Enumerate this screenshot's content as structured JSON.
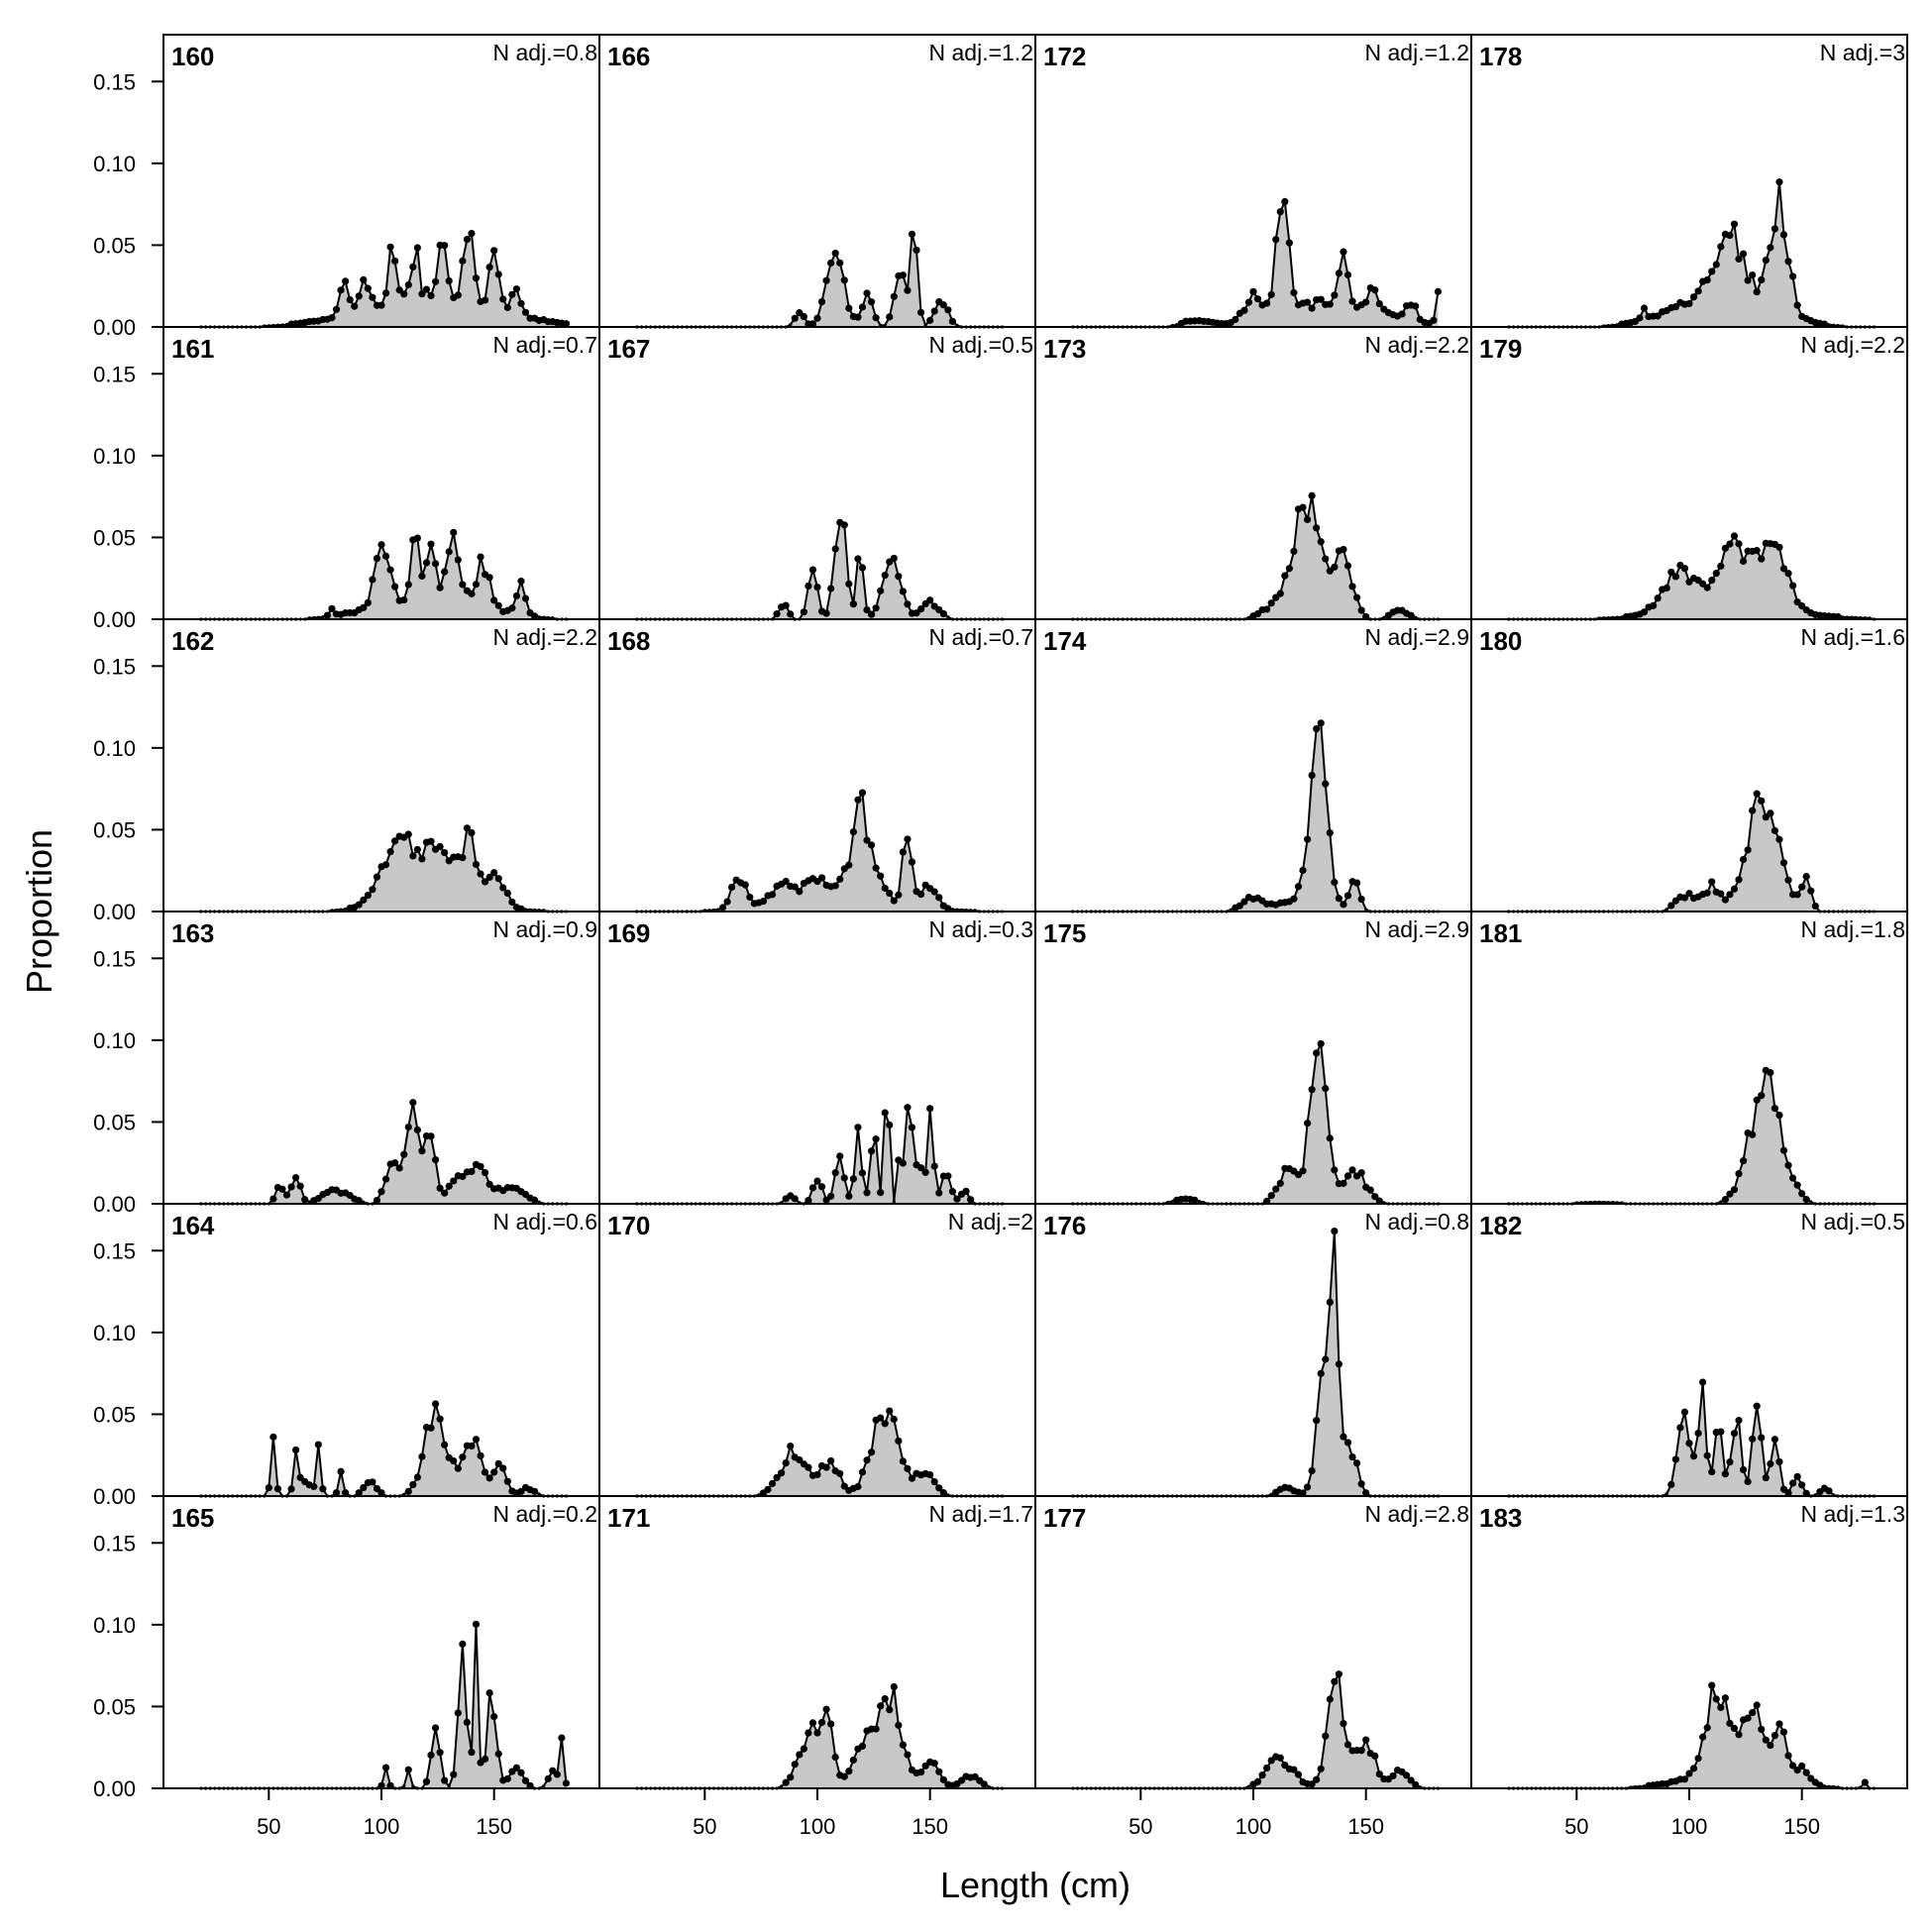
{
  "chart_data": {
    "type": "area",
    "xlabel": "Length (cm)",
    "ylabel": "Proportion",
    "xlim": [
      5,
      195
    ],
    "ylim": [
      0,
      0.175
    ],
    "xticks": [
      50,
      100,
      150
    ],
    "xtick_labels": [
      "50",
      "100",
      "150"
    ],
    "yticks": [
      0,
      0.05,
      0.1,
      0.15
    ],
    "ytick_labels": [
      "0.00",
      "0.05",
      "0.10",
      "0.15"
    ],
    "grid": false,
    "legend": "none",
    "layout": {
      "rows": 6,
      "cols": 4
    },
    "style": {
      "fill": "#c8c8c8",
      "line": "#000000"
    },
    "panels": [
      {
        "id": "160",
        "nadj": "N adj.=0.8",
        "row": 0,
        "col": 0,
        "peaks": [
          [
            83,
            0.02,
            2
          ],
          [
            92,
            0.02,
            2
          ],
          [
            105,
            0.036,
            1.5
          ],
          [
            115,
            0.03,
            1.5
          ],
          [
            127,
            0.035,
            1.5
          ],
          [
            139,
            0.052,
            2
          ],
          [
            150,
            0.032,
            2
          ],
          [
            160,
            0.015,
            2
          ]
        ],
        "broad": [
          [
            122,
            28,
            0.02
          ]
        ]
      },
      {
        "id": "166",
        "nadj": "N adj.=1.2",
        "row": 0,
        "col": 1,
        "peaks": [
          [
            92,
            0.01,
            2
          ],
          [
            108,
            0.041,
            4
          ],
          [
            122,
            0.018,
            2.5
          ],
          [
            137,
            0.04,
            2.5
          ],
          [
            143,
            0.057,
            1.5
          ],
          [
            155,
            0.015,
            3
          ]
        ],
        "broad": []
      },
      {
        "id": "172",
        "nadj": "N adj.=1.2",
        "row": 0,
        "col": 2,
        "peaks": [
          [
            113,
            0.078,
            2.5
          ],
          [
            100,
            0.015,
            4
          ],
          [
            75,
            0.004,
            6
          ],
          [
            140,
            0.025,
            2
          ],
          [
            153,
            0.013,
            2
          ],
          [
            170,
            0.012,
            2
          ],
          [
            182,
            0.02,
            1
          ]
        ],
        "broad": [
          [
            135,
            22,
            0.015
          ]
        ]
      },
      {
        "id": "178",
        "nadj": "N adj.=3",
        "row": 0,
        "col": 3,
        "peaks": [
          [
            80,
            0.008,
            1
          ],
          [
            118,
            0.035,
            6
          ],
          [
            140,
            0.066,
            4
          ]
        ],
        "broad": [
          [
            115,
            20,
            0.022
          ]
        ]
      },
      {
        "id": "161",
        "nadj": "N adj.=0.7",
        "row": 1,
        "col": 0,
        "peaks": [
          [
            78,
            0.005,
            1
          ],
          [
            100,
            0.04,
            3
          ],
          [
            115,
            0.055,
            1.5
          ],
          [
            122,
            0.03,
            2
          ],
          [
            132,
            0.038,
            2.5
          ],
          [
            145,
            0.025,
            3
          ],
          [
            162,
            0.018,
            2
          ]
        ],
        "broad": [
          [
            122,
            22,
            0.015
          ]
        ]
      },
      {
        "id": "167",
        "nadj": "N adj.=0.5",
        "row": 1,
        "col": 1,
        "peaks": [
          [
            85,
            0.01,
            2
          ],
          [
            98,
            0.03,
            2
          ],
          [
            110,
            0.068,
            2.5
          ],
          [
            119,
            0.04,
            1.5
          ],
          [
            133,
            0.035,
            4
          ],
          [
            150,
            0.01,
            4
          ]
        ],
        "broad": []
      },
      {
        "id": "173",
        "nadj": "N adj.=2.2",
        "row": 1,
        "col": 2,
        "peaks": [
          [
            124,
            0.07,
            6
          ],
          [
            140,
            0.035,
            4
          ],
          [
            110,
            0.008,
            6
          ],
          [
            165,
            0.005,
            4
          ]
        ],
        "broad": []
      },
      {
        "id": "179",
        "nadj": "N adj.=2.2",
        "row": 1,
        "col": 3,
        "peaks": [
          [
            95,
            0.026,
            7
          ],
          [
            120,
            0.038,
            8
          ],
          [
            138,
            0.035,
            6
          ]
        ],
        "broad": [
          [
            120,
            30,
            0.005
          ]
        ]
      },
      {
        "id": "162",
        "nadj": "N adj.=2.2",
        "row": 2,
        "col": 0,
        "peaks": [
          [
            108,
            0.04,
            8
          ],
          [
            126,
            0.036,
            6
          ],
          [
            139,
            0.043,
            3
          ],
          [
            150,
            0.025,
            4
          ]
        ],
        "broad": [
          [
            125,
            25,
            0.004
          ]
        ]
      },
      {
        "id": "168",
        "nadj": "N adj.=0.7",
        "row": 2,
        "col": 1,
        "peaks": [
          [
            65,
            0.02,
            3
          ],
          [
            85,
            0.012,
            6
          ],
          [
            100,
            0.015,
            5
          ],
          [
            120,
            0.045,
            6
          ],
          [
            119,
            0.025,
            1
          ],
          [
            140,
            0.045,
            2
          ],
          [
            150,
            0.015,
            3
          ]
        ],
        "broad": [
          [
            110,
            30,
            0.005
          ]
        ]
      },
      {
        "id": "174",
        "nadj": "N adj.=2.9",
        "row": 2,
        "col": 2,
        "peaks": [
          [
            129,
            0.117,
            3.5
          ],
          [
            145,
            0.02,
            2
          ],
          [
            100,
            0.008,
            5
          ]
        ],
        "broad": [
          [
            125,
            10,
            0.01
          ]
        ]
      },
      {
        "id": "180",
        "nadj": "N adj.=1.6",
        "row": 2,
        "col": 3,
        "peaks": [
          [
            133,
            0.068,
            7
          ],
          [
            98,
            0.01,
            4
          ],
          [
            110,
            0.015,
            4
          ],
          [
            152,
            0.02,
            2
          ]
        ],
        "broad": []
      },
      {
        "id": "163",
        "nadj": "N adj.=0.9",
        "row": 3,
        "col": 0,
        "peaks": [
          [
            55,
            0.01,
            2
          ],
          [
            62,
            0.015,
            2
          ],
          [
            80,
            0.008,
            6
          ],
          [
            105,
            0.03,
            3
          ],
          [
            114,
            0.062,
            3
          ],
          [
            122,
            0.045,
            2
          ],
          [
            140,
            0.022,
            8
          ],
          [
            160,
            0.008,
            5
          ]
        ],
        "broad": []
      },
      {
        "id": "169",
        "nadj": "N adj.=0.3",
        "row": 3,
        "col": 1,
        "peaks": [
          [
            88,
            0.005,
            2
          ],
          [
            100,
            0.015,
            2
          ],
          [
            110,
            0.03,
            2
          ],
          [
            118,
            0.04,
            1.5
          ],
          [
            125,
            0.045,
            1.5
          ],
          [
            131,
            0.078,
            1
          ],
          [
            137,
            0.04,
            1
          ],
          [
            141,
            0.085,
            1
          ],
          [
            145,
            0.04,
            1
          ],
          [
            150,
            0.05,
            1.5
          ],
          [
            157,
            0.02,
            2
          ],
          [
            165,
            0.008,
            2
          ]
        ],
        "broad": []
      },
      {
        "id": "175",
        "nadj": "N adj.=2.9",
        "row": 3,
        "col": 2,
        "peaks": [
          [
            129,
            0.088,
            4
          ],
          [
            115,
            0.02,
            4
          ],
          [
            145,
            0.02,
            5
          ],
          [
            70,
            0.003,
            5
          ]
        ],
        "broad": []
      },
      {
        "id": "181",
        "nadj": "N adj.=1.8",
        "row": 3,
        "col": 3,
        "peaks": [
          [
            134,
            0.072,
            7
          ],
          [
            131,
            0.01,
            1
          ]
        ],
        "broad": [
          [
            60,
            10,
            0.001
          ]
        ]
      },
      {
        "id": "164",
        "nadj": "N adj.=0.6",
        "row": 4,
        "col": 0,
        "peaks": [
          [
            52,
            0.04,
            1
          ],
          [
            62,
            0.03,
            1
          ],
          [
            72,
            0.033,
            1
          ],
          [
            66,
            0.01,
            2
          ],
          [
            82,
            0.015,
            1
          ],
          [
            95,
            0.008,
            3
          ],
          [
            124,
            0.05,
            5
          ],
          [
            140,
            0.035,
            4
          ],
          [
            152,
            0.02,
            3
          ],
          [
            165,
            0.005,
            3
          ]
        ],
        "broad": []
      },
      {
        "id": "170",
        "nadj": "N adj.=2",
        "row": 4,
        "col": 1,
        "peaks": [
          [
            90,
            0.028,
            6
          ],
          [
            106,
            0.02,
            4
          ],
          [
            130,
            0.05,
            6
          ],
          [
            148,
            0.015,
            4
          ]
        ],
        "broad": []
      },
      {
        "id": "176",
        "nadj": "N adj.=0.8",
        "row": 4,
        "col": 2,
        "peaks": [
          [
            136,
            0.122,
            2
          ],
          [
            131,
            0.07,
            3
          ],
          [
            143,
            0.03,
            3
          ],
          [
            115,
            0.005,
            4
          ]
        ],
        "broad": []
      },
      {
        "id": "182",
        "nadj": "N adj.=0.5",
        "row": 4,
        "col": 3,
        "peaks": [
          [
            98,
            0.048,
            3
          ],
          [
            106,
            0.065,
            1.5
          ],
          [
            113,
            0.04,
            2
          ],
          [
            121,
            0.05,
            2
          ],
          [
            130,
            0.055,
            2
          ],
          [
            138,
            0.03,
            2
          ],
          [
            148,
            0.012,
            2
          ],
          [
            160,
            0.005,
            2
          ]
        ],
        "broad": []
      },
      {
        "id": "165",
        "nadj": "N adj.=0.2",
        "row": 5,
        "col": 0,
        "peaks": [
          [
            102,
            0.012,
            1
          ],
          [
            112,
            0.01,
            1
          ],
          [
            124,
            0.032,
            2
          ],
          [
            136,
            0.075,
            2
          ],
          [
            142,
            0.085,
            1
          ],
          [
            149,
            0.06,
            2
          ],
          [
            160,
            0.012,
            3
          ],
          [
            176,
            0.01,
            2
          ],
          [
            180,
            0.025,
            1
          ]
        ],
        "broad": []
      },
      {
        "id": "171",
        "nadj": "N adj.=1.7",
        "row": 5,
        "col": 1,
        "peaks": [
          [
            97,
            0.035,
            5
          ],
          [
            105,
            0.04,
            2
          ],
          [
            125,
            0.03,
            8
          ],
          [
            133,
            0.038,
            5
          ],
          [
            150,
            0.015,
            4
          ],
          [
            168,
            0.008,
            4
          ]
        ],
        "broad": []
      },
      {
        "id": "177",
        "nadj": "N adj.=2.8",
        "row": 5,
        "col": 2,
        "peaks": [
          [
            137,
            0.062,
            4
          ],
          [
            112,
            0.018,
            6
          ],
          [
            150,
            0.028,
            4
          ],
          [
            165,
            0.01,
            4
          ]
        ],
        "broad": []
      },
      {
        "id": "183",
        "nadj": "N adj.=1.3",
        "row": 5,
        "col": 3,
        "peaks": [
          [
            112,
            0.05,
            5
          ],
          [
            128,
            0.04,
            5
          ],
          [
            140,
            0.03,
            3
          ],
          [
            150,
            0.01,
            3
          ],
          [
            178,
            0.003,
            1
          ]
        ],
        "broad": [
          [
            120,
            20,
            0.01
          ]
        ]
      }
    ]
  }
}
